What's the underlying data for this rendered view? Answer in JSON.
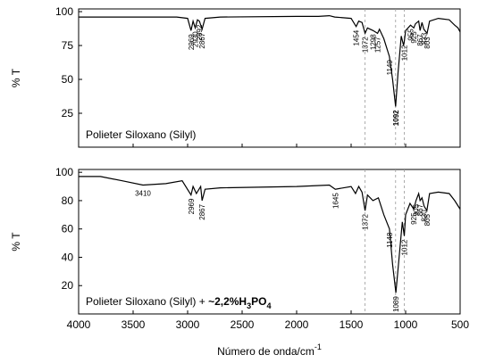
{
  "chart_data": [
    {
      "type": "line",
      "label": "Polieter Siloxano (Silyl)",
      "ylabel": "% T",
      "x": [
        4000,
        3800,
        3500,
        3200,
        3100,
        3000,
        2969,
        2950,
        2930,
        2910,
        2892,
        2867,
        2840,
        2700,
        2000,
        1800,
        1700,
        1650,
        1500,
        1454,
        1430,
        1400,
        1372,
        1350,
        1298,
        1257,
        1240,
        1200,
        1149,
        1120,
        1092,
        1070,
        1040,
        1019,
        1012,
        1000,
        955,
        925,
        910,
        880,
        867,
        850,
        833,
        803,
        780,
        700,
        600,
        550,
        520,
        500
      ],
      "values": [
        96,
        96,
        96,
        96,
        96,
        95,
        86,
        93,
        88,
        94,
        93,
        87,
        95,
        96,
        96.5,
        96.5,
        97,
        96,
        95,
        89,
        93,
        92,
        84,
        88,
        86,
        84,
        87,
        80,
        67,
        50,
        30,
        55,
        82,
        75,
        78,
        86,
        90,
        88,
        91,
        93,
        86,
        92,
        87,
        84,
        93,
        95,
        94,
        90,
        88,
        85
      ],
      "color": "#000000",
      "xlim": [
        4000,
        500
      ],
      "xticks": [
        4000,
        3500,
        3000,
        2500,
        2000,
        1500,
        1000,
        500
      ],
      "ylim": [
        0,
        102
      ],
      "yticks": [
        25,
        50,
        75,
        100
      ],
      "reference_lines": [
        1372,
        1092,
        1012
      ],
      "annotations": [
        {
          "x": 2969,
          "text": "2969"
        },
        {
          "x": 2930,
          "text": "2930"
        },
        {
          "x": 2892,
          "text": "2892"
        },
        {
          "x": 2867,
          "text": "2867"
        },
        {
          "x": 1454,
          "text": "1454"
        },
        {
          "x": 1372,
          "text": "1372"
        },
        {
          "x": 1298,
          "text": "1298"
        },
        {
          "x": 1257,
          "text": "1257"
        },
        {
          "x": 1149,
          "text": "1149"
        },
        {
          "x": 1092,
          "text": "1092",
          "bold": true
        },
        {
          "x": 1012,
          "text": "1012"
        },
        {
          "x": 955,
          "text": "955"
        },
        {
          "x": 925,
          "text": "925"
        },
        {
          "x": 867,
          "text": "867"
        },
        {
          "x": 833,
          "text": "833"
        },
        {
          "x": 803,
          "text": "803"
        }
      ]
    },
    {
      "type": "line",
      "label_parts": [
        {
          "text": "Polieter Siloxano (Silyl) + "
        },
        {
          "text": "~2,2%H",
          "bold": true
        },
        {
          "text": "3",
          "bold": true,
          "sub": true
        },
        {
          "text": "PO",
          "bold": true
        },
        {
          "text": "4",
          "bold": true,
          "sub": true
        }
      ],
      "ylabel": "% T",
      "xlabel_parts": [
        "Número de onda/cm",
        "-1"
      ],
      "x": [
        4000,
        3800,
        3600,
        3410,
        3200,
        3050,
        2969,
        2950,
        2920,
        2880,
        2867,
        2840,
        2700,
        2000,
        1700,
        1645,
        1500,
        1460,
        1430,
        1400,
        1372,
        1350,
        1300,
        1250,
        1200,
        1148,
        1120,
        1089,
        1060,
        1030,
        1012,
        1000,
        960,
        925,
        905,
        880,
        867,
        850,
        830,
        805,
        780,
        700,
        600,
        550,
        500
      ],
      "values": [
        97,
        97,
        94,
        91,
        92,
        94,
        84,
        90,
        85,
        90,
        80,
        88,
        89,
        90,
        91,
        88,
        90,
        85,
        90,
        86,
        73,
        84,
        80,
        82,
        70,
        60,
        35,
        15,
        40,
        65,
        55,
        70,
        78,
        74,
        80,
        85,
        80,
        82,
        76,
        73,
        85,
        86,
        85,
        80,
        74
      ],
      "color": "#000000",
      "xlim": [
        4000,
        500
      ],
      "xticks": [
        4000,
        3500,
        3000,
        2500,
        2000,
        1500,
        1000,
        500
      ],
      "ylim": [
        0,
        102
      ],
      "yticks": [
        20,
        40,
        60,
        80,
        100
      ],
      "reference_lines": [
        1372,
        1092,
        1012
      ],
      "annotations": [
        {
          "x": 3410,
          "text": "3410",
          "horizontal": true
        },
        {
          "x": 2969,
          "text": "2969"
        },
        {
          "x": 2867,
          "text": "2867"
        },
        {
          "x": 1645,
          "text": "1645"
        },
        {
          "x": 1372,
          "text": "1372"
        },
        {
          "x": 1148,
          "text": "1148"
        },
        {
          "x": 1089,
          "text": "1089"
        },
        {
          "x": 1012,
          "text": "1012"
        },
        {
          "x": 925,
          "text": "925"
        },
        {
          "x": 905,
          "text": "905"
        },
        {
          "x": 867,
          "text": "867"
        },
        {
          "x": 830,
          "text": "830"
        },
        {
          "x": 805,
          "text": "805"
        }
      ]
    }
  ]
}
